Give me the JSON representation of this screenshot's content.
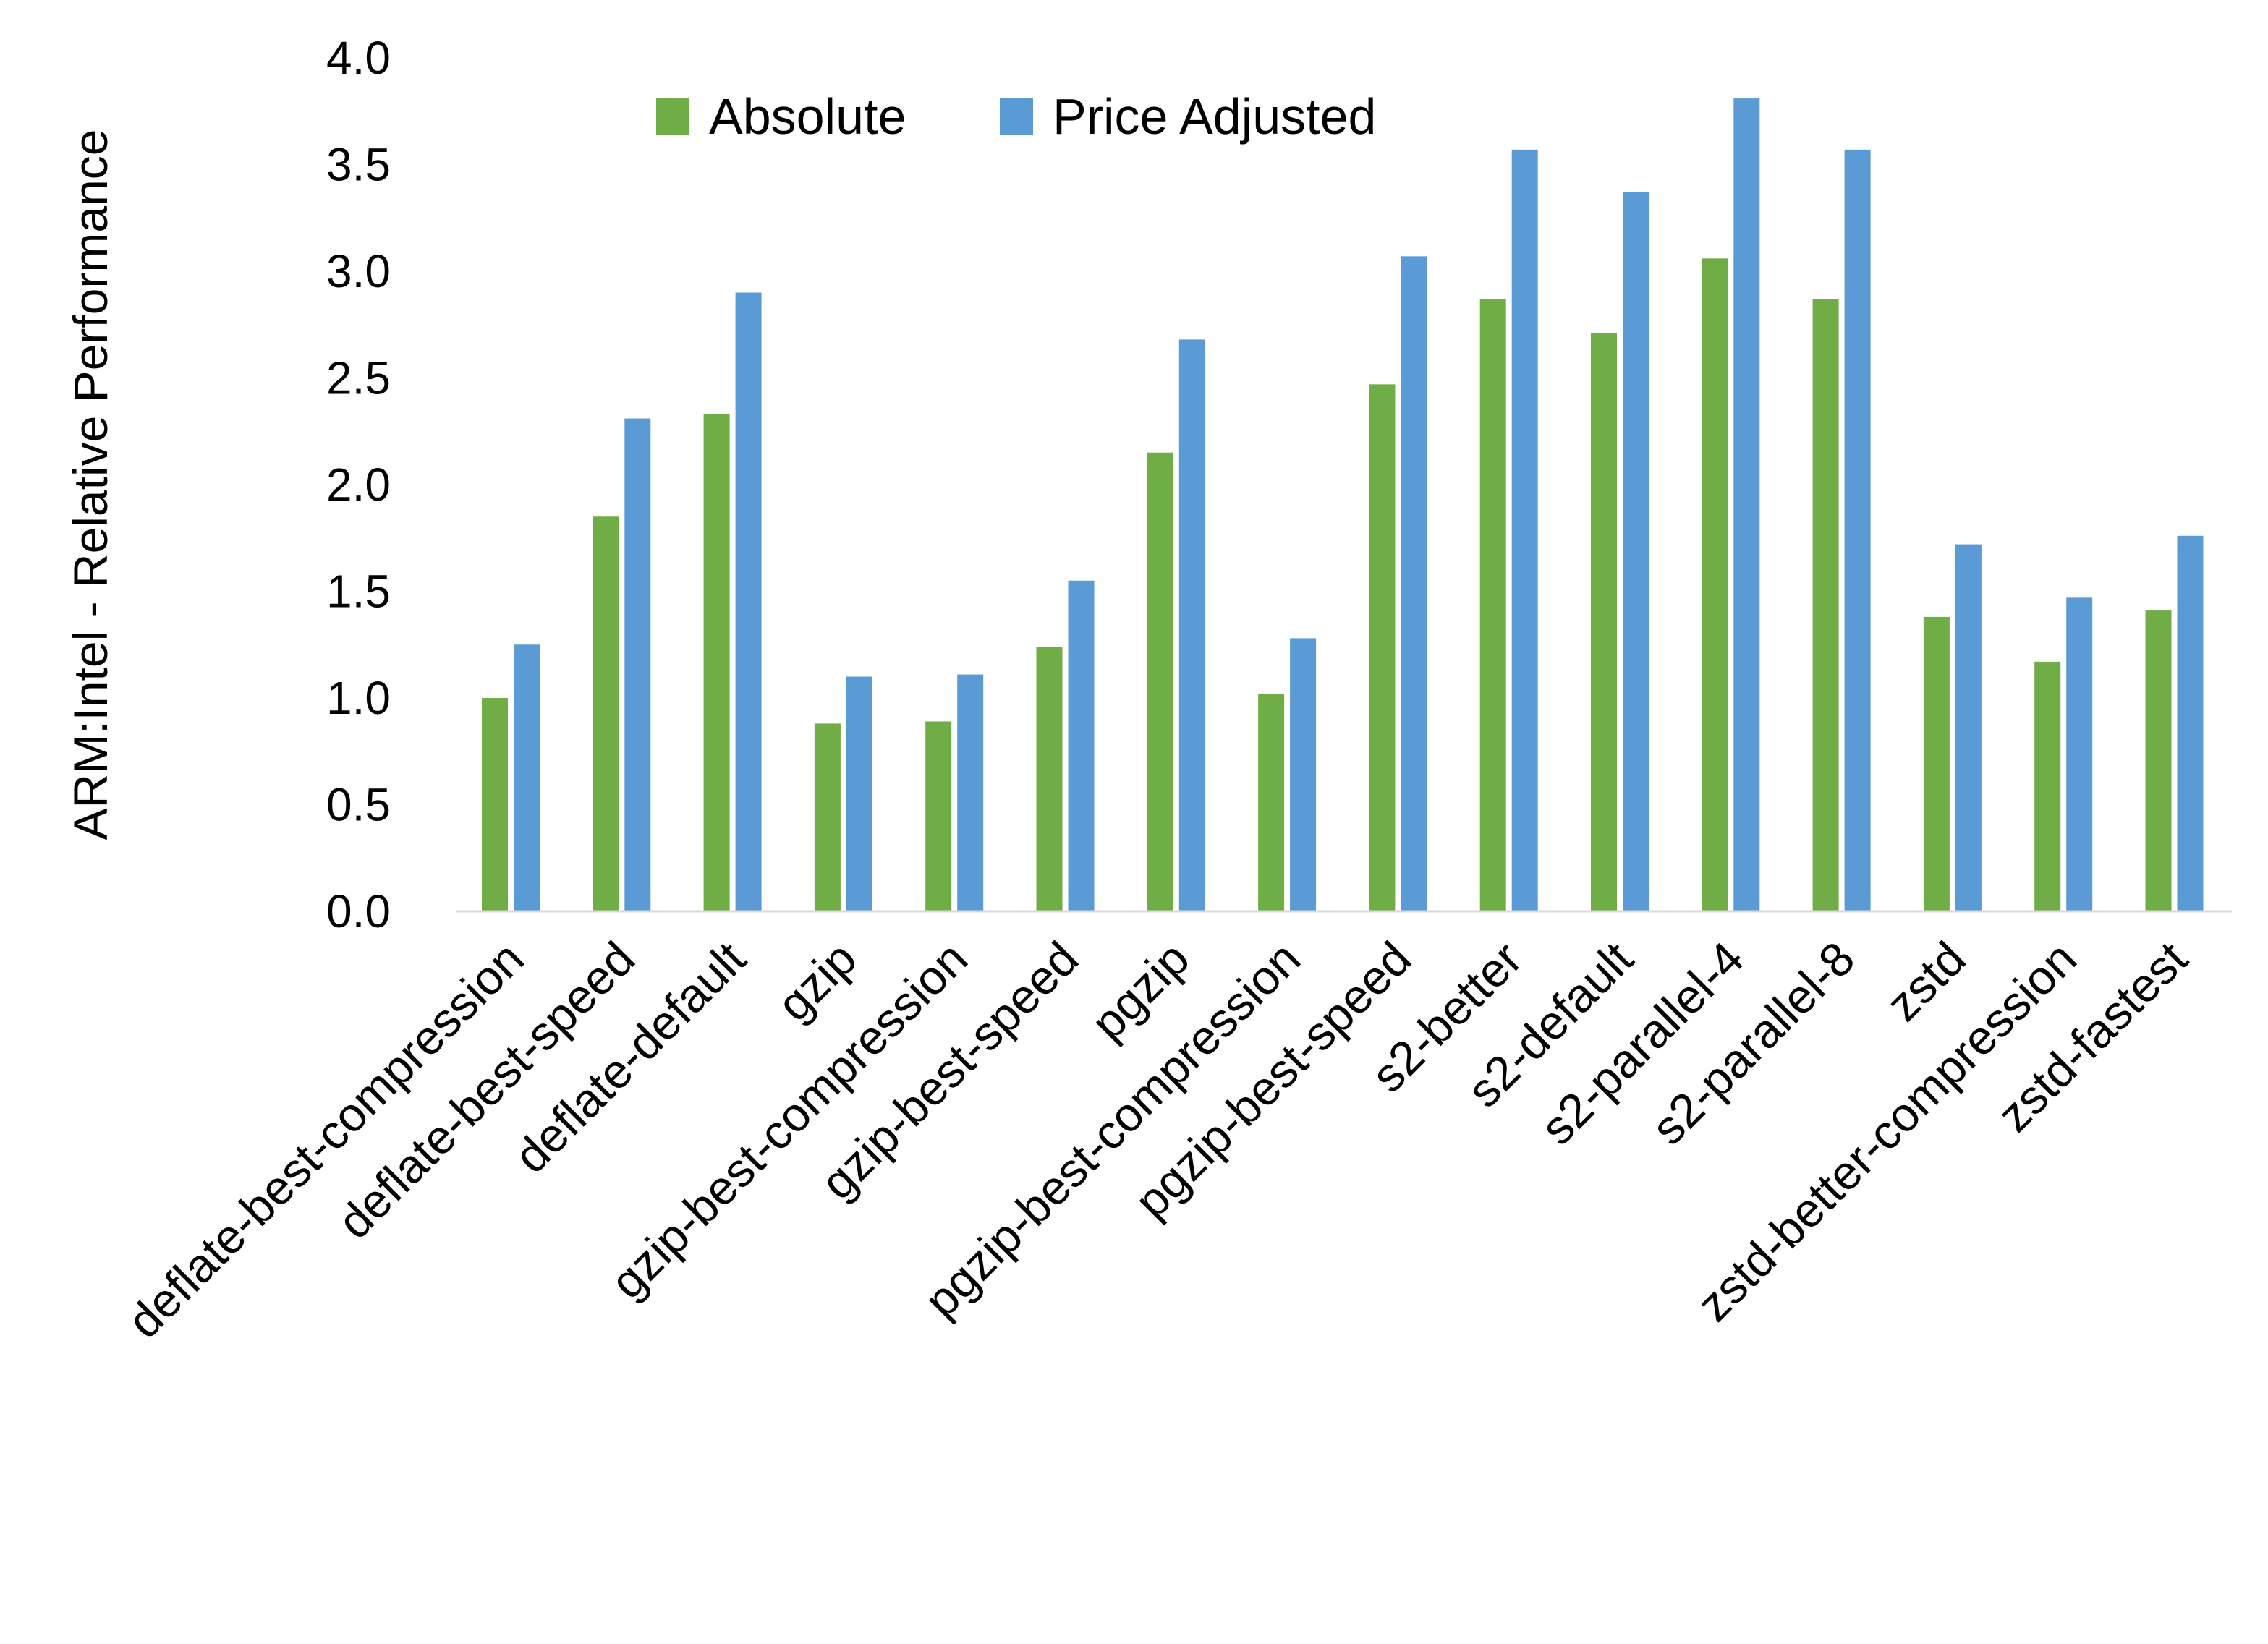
{
  "chart_data": {
    "type": "bar",
    "title": "",
    "xlabel": "",
    "ylabel": "ARM:Intel - Relative Performance",
    "ylim": [
      0,
      4
    ],
    "yticks": [
      "0.0",
      "0.5",
      "1.0",
      "1.5",
      "2.0",
      "2.5",
      "3.0",
      "3.5",
      "4.0"
    ],
    "grid": false,
    "legend_position": "top",
    "categories": [
      "deflate-best-compression",
      "deflate-best-speed",
      "deflate-default",
      "gzip",
      "gzip-best-compression",
      "gzip-best-speed",
      "pgzip",
      "pgzip-best-compression",
      "pgzip-best-speed",
      "s2-better",
      "s2-default",
      "s2-parallel-4",
      "s2-parallel-8",
      "zstd",
      "zstd-better-compression",
      "zstd-fastest"
    ],
    "series": [
      {
        "name": "Absolute",
        "color": "#70AD47",
        "values": [
          1.0,
          1.85,
          2.33,
          0.88,
          0.89,
          1.24,
          2.15,
          1.02,
          2.47,
          2.87,
          2.71,
          3.06,
          2.87,
          1.38,
          1.17,
          1.41
        ]
      },
      {
        "name": "Price Adjusted",
        "color": "#5B9BD5",
        "values": [
          1.25,
          2.31,
          2.9,
          1.1,
          1.11,
          1.55,
          2.68,
          1.28,
          3.07,
          3.57,
          3.37,
          3.81,
          3.57,
          1.72,
          1.47,
          1.76
        ]
      }
    ]
  }
}
